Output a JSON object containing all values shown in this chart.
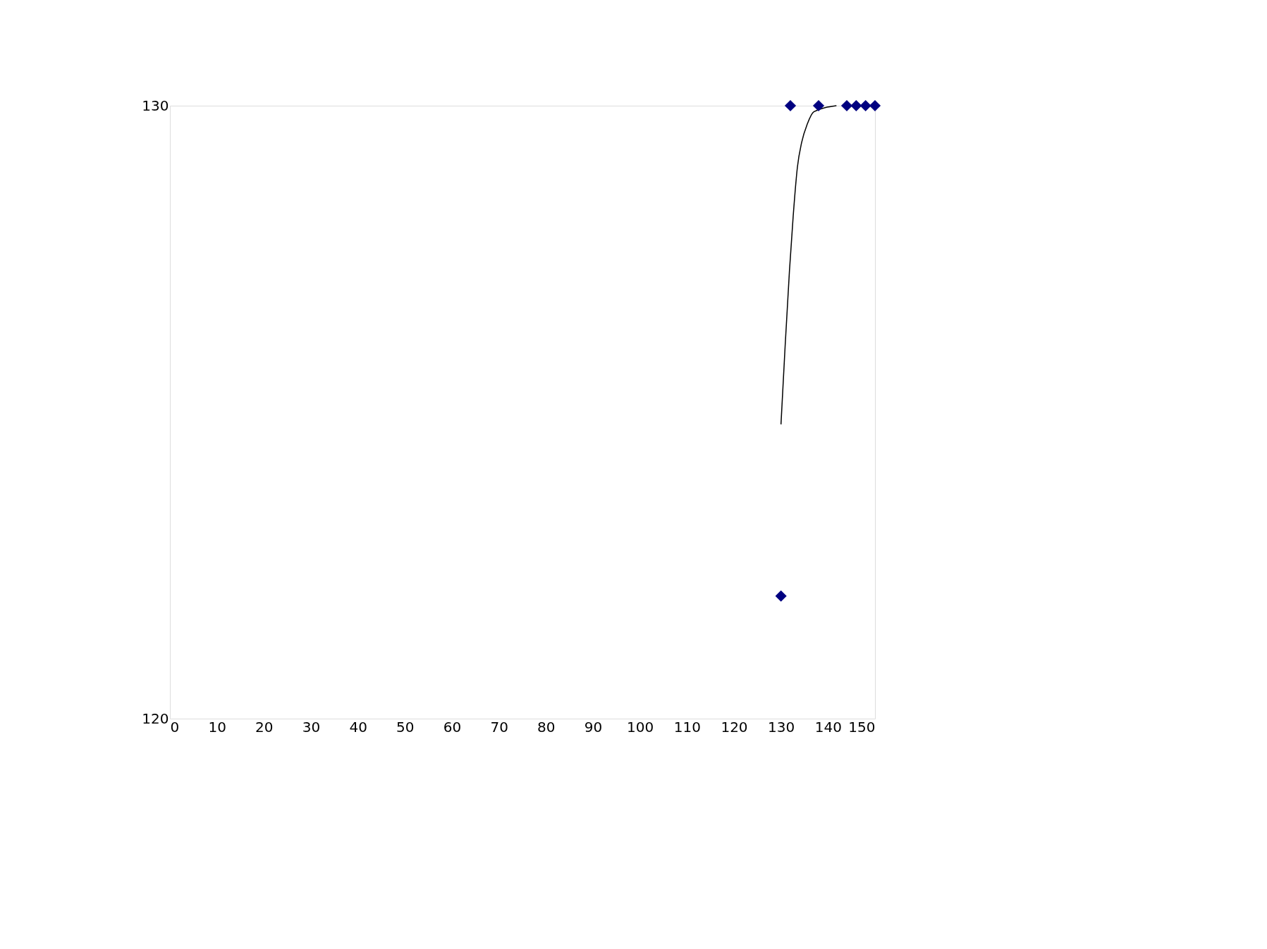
{
  "chart_data": {
    "type": "scatter",
    "xlim": [
      0,
      150
    ],
    "ylim": [
      120,
      130
    ],
    "xticks": [
      0,
      10,
      20,
      30,
      40,
      50,
      60,
      70,
      80,
      90,
      100,
      110,
      120,
      130,
      140,
      150
    ],
    "yticks": [
      120,
      130
    ],
    "marker": "diamond",
    "series": [
      {
        "color": "#000080",
        "x": [
          130,
          132,
          138,
          144,
          146,
          148,
          150
        ],
        "values": [
          122.0,
          130,
          130,
          130,
          130,
          130,
          130
        ]
      },
      {
        "type": "line",
        "color": "#000000",
        "marker": "none",
        "line_style": "solid",
        "x": [
          130.0,
          130.9,
          131.8,
          132.6,
          133.5,
          134.4,
          135.6,
          137.0,
          141.8
        ],
        "values": [
          124.8,
          126.1,
          127.3,
          128.2,
          129.0,
          129.4,
          129.7,
          129.9,
          130.0
        ]
      }
    ]
  }
}
